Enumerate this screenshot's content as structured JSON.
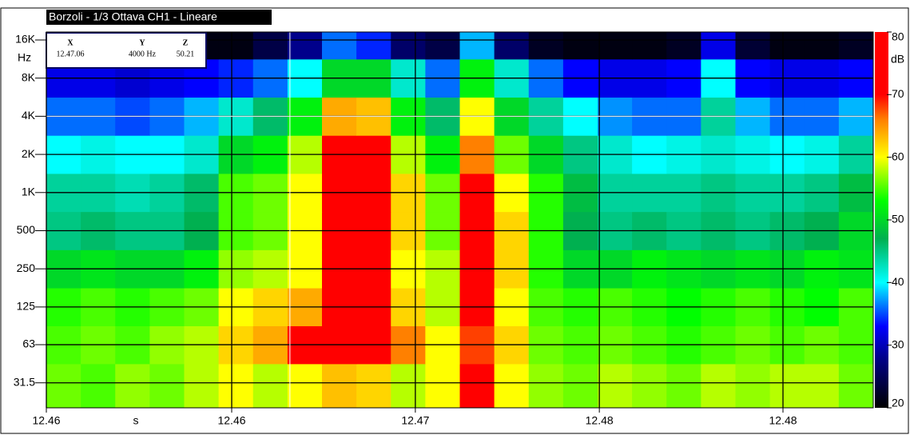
{
  "chart_data": {
    "type": "heatmap",
    "title": "Borzoli - 1/3 Ottava CH1 - Lineare",
    "y_label": "Hz",
    "x_label": "s",
    "colorbar_label": "dB",
    "y_log": true,
    "grid": true,
    "ylim": [
      20,
      18500
    ],
    "yticks": [
      {
        "value": 16000,
        "label": "16K"
      },
      {
        "value": 8000,
        "label": "8K"
      },
      {
        "value": 4000,
        "label": "4K"
      },
      {
        "value": 2000,
        "label": "2K"
      },
      {
        "value": 1000,
        "label": "1K"
      },
      500,
      250,
      125,
      63,
      31.5
    ],
    "xlim": [
      0,
      24
    ],
    "xticks": [
      {
        "value": 0,
        "label": "12.46"
      },
      {
        "value": 5.38,
        "label": "12.46"
      },
      {
        "value": 10.71,
        "label": "12.47"
      },
      {
        "value": 16.05,
        "label": "12.48"
      },
      {
        "value": 21.38,
        "label": "12.48"
      }
    ],
    "rows": [
      31.5,
      63,
      125,
      250,
      500,
      1000,
      2000,
      4000,
      8000,
      16000
    ],
    "z": [
      [
        56,
        55,
        57,
        56,
        58,
        60,
        58,
        60,
        63,
        62,
        58,
        60,
        70,
        60,
        57,
        56,
        58,
        57,
        56,
        58,
        57,
        58,
        58,
        56
      ],
      [
        55,
        56,
        55,
        57,
        58,
        62,
        64,
        72,
        74,
        72,
        66,
        60,
        68,
        62,
        56,
        55,
        56,
        55,
        54,
        55,
        56,
        55,
        56,
        55
      ],
      [
        54,
        55,
        54,
        55,
        56,
        60,
        62,
        64,
        74,
        73,
        62,
        58,
        70,
        60,
        55,
        54,
        55,
        54,
        53,
        54,
        55,
        54,
        53,
        55
      ],
      [
        50,
        51,
        50,
        50,
        52,
        57,
        58,
        60,
        75,
        75,
        60,
        58,
        72,
        62,
        54,
        50,
        50,
        52,
        51,
        50,
        51,
        50,
        52,
        51
      ],
      [
        45,
        46,
        45,
        45,
        47,
        55,
        56,
        60,
        75,
        74,
        62,
        56,
        72,
        62,
        54,
        47,
        45,
        46,
        45,
        46,
        45,
        46,
        47,
        50
      ],
      [
        44,
        44,
        43,
        44,
        46,
        55,
        56,
        60,
        74,
        74,
        62,
        56,
        70,
        60,
        54,
        48,
        44,
        44,
        44,
        45,
        44,
        44,
        45,
        48
      ],
      [
        40,
        41,
        40,
        40,
        42,
        50,
        52,
        58,
        72,
        70,
        58,
        52,
        66,
        56,
        50,
        45,
        42,
        40,
        41,
        42,
        41,
        40,
        41,
        44
      ],
      [
        36,
        36,
        35,
        36,
        38,
        42,
        46,
        52,
        64,
        63,
        52,
        46,
        60,
        50,
        44,
        40,
        37,
        36,
        36,
        44,
        38,
        36,
        36,
        38
      ],
      [
        32,
        32,
        31,
        32,
        33,
        34,
        36,
        40,
        50,
        50,
        42,
        36,
        52,
        42,
        36,
        33,
        32,
        32,
        33,
        40,
        33,
        32,
        32,
        33
      ],
      [
        24,
        24,
        23,
        22,
        21,
        21,
        24,
        28,
        36,
        34,
        26,
        24,
        38,
        26,
        22,
        21,
        21,
        21,
        22,
        32,
        23,
        21,
        21,
        22
      ]
    ],
    "zlim": [
      20,
      80
    ],
    "zticks": [
      80,
      70,
      60,
      50,
      40,
      30,
      20
    ],
    "colorscale": [
      [
        20,
        "#000000"
      ],
      [
        28,
        "#00008b"
      ],
      [
        33,
        "#0000ff"
      ],
      [
        40,
        "#00ffff"
      ],
      [
        47,
        "#00b050"
      ],
      [
        53,
        "#00ff00"
      ],
      [
        60,
        "#ffff00"
      ],
      [
        66,
        "#ff8000"
      ],
      [
        70,
        "#ff0000"
      ],
      [
        80,
        "#ff0000"
      ]
    ],
    "cursor": {
      "x": 7.07,
      "y": 4000
    },
    "readout": {
      "headers": [
        "X",
        "Y",
        "Z"
      ],
      "values": [
        "12.47.06",
        "4000 Hz",
        "50.21"
      ]
    }
  }
}
